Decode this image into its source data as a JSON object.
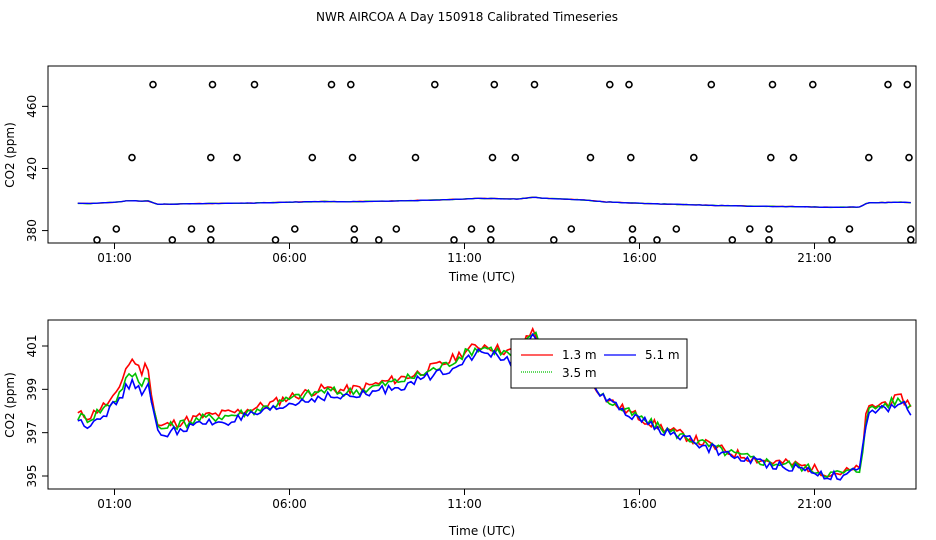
{
  "title": "NWR AIRCOA A  Day 150918  Calibrated Timeseries",
  "chart_data": [
    {
      "type": "scatter",
      "xlabel": "Time (UTC)",
      "ylabel": "CO2 (ppm)",
      "xlim": [
        -0.9,
        23.9
      ],
      "ylim": [
        372,
        486
      ],
      "xticks": [
        1,
        6,
        11,
        16,
        21
      ],
      "xtick_labels": [
        "01:00",
        "06:00",
        "11:00",
        "16:00",
        "21:00"
      ],
      "yticks": [
        380,
        420,
        460
      ],
      "ytick_labels": [
        "380",
        "420",
        "460"
      ],
      "grid": false,
      "points": [
        {
          "x": 0.5,
          "y": 374
        },
        {
          "x": 1.05,
          "y": 381
        },
        {
          "x": 1.5,
          "y": 427
        },
        {
          "x": 2.1,
          "y": 474
        },
        {
          "x": 2.65,
          "y": 374
        },
        {
          "x": 3.2,
          "y": 381
        },
        {
          "x": 3.75,
          "y": 381
        },
        {
          "x": 3.75,
          "y": 427
        },
        {
          "x": 3.8,
          "y": 474
        },
        {
          "x": 3.75,
          "y": 374
        },
        {
          "x": 4.5,
          "y": 427
        },
        {
          "x": 5.0,
          "y": 474
        },
        {
          "x": 5.6,
          "y": 374
        },
        {
          "x": 6.15,
          "y": 381
        },
        {
          "x": 6.65,
          "y": 427
        },
        {
          "x": 7.2,
          "y": 474
        },
        {
          "x": 7.75,
          "y": 474
        },
        {
          "x": 7.8,
          "y": 427
        },
        {
          "x": 7.85,
          "y": 381
        },
        {
          "x": 7.85,
          "y": 374
        },
        {
          "x": 8.55,
          "y": 374
        },
        {
          "x": 9.05,
          "y": 381
        },
        {
          "x": 9.6,
          "y": 427
        },
        {
          "x": 10.15,
          "y": 474
        },
        {
          "x": 10.7,
          "y": 374
        },
        {
          "x": 11.2,
          "y": 381
        },
        {
          "x": 11.75,
          "y": 381
        },
        {
          "x": 11.8,
          "y": 427
        },
        {
          "x": 11.85,
          "y": 474
        },
        {
          "x": 11.75,
          "y": 374
        },
        {
          "x": 12.45,
          "y": 427
        },
        {
          "x": 13.0,
          "y": 474
        },
        {
          "x": 13.55,
          "y": 374
        },
        {
          "x": 14.05,
          "y": 381
        },
        {
          "x": 14.6,
          "y": 427
        },
        {
          "x": 15.15,
          "y": 474
        },
        {
          "x": 15.7,
          "y": 474
        },
        {
          "x": 15.75,
          "y": 427
        },
        {
          "x": 15.8,
          "y": 381
        },
        {
          "x": 15.8,
          "y": 374
        },
        {
          "x": 16.5,
          "y": 374
        },
        {
          "x": 17.05,
          "y": 381
        },
        {
          "x": 17.55,
          "y": 427
        },
        {
          "x": 18.05,
          "y": 474
        },
        {
          "x": 18.65,
          "y": 374
        },
        {
          "x": 19.15,
          "y": 381
        },
        {
          "x": 19.7,
          "y": 381
        },
        {
          "x": 19.75,
          "y": 427
        },
        {
          "x": 19.8,
          "y": 474
        },
        {
          "x": 19.7,
          "y": 374
        },
        {
          "x": 20.4,
          "y": 427
        },
        {
          "x": 20.95,
          "y": 474
        },
        {
          "x": 21.5,
          "y": 374
        },
        {
          "x": 22.0,
          "y": 381
        },
        {
          "x": 22.55,
          "y": 427
        },
        {
          "x": 23.1,
          "y": 474
        },
        {
          "x": 23.65,
          "y": 474
        },
        {
          "x": 23.7,
          "y": 427
        },
        {
          "x": 23.75,
          "y": 381
        },
        {
          "x": 23.75,
          "y": 374
        }
      ],
      "series": [
        {
          "name": "red",
          "color": "#ff0000"
        },
        {
          "name": "green",
          "color": "#00c000"
        },
        {
          "name": "blue",
          "color": "#0000ff"
        }
      ]
    },
    {
      "type": "line",
      "xlabel": "Time (UTC)",
      "ylabel": "CO2 (ppm)",
      "xlim": [
        -0.9,
        23.9
      ],
      "ylim": [
        394.4,
        402.2
      ],
      "xticks": [
        1,
        6,
        11,
        16,
        21
      ],
      "xtick_labels": [
        "01:00",
        "06:00",
        "11:00",
        "16:00",
        "21:00"
      ],
      "yticks": [
        395,
        397,
        399,
        401
      ],
      "ytick_labels": [
        "395",
        "397",
        "399",
        "401"
      ],
      "grid": false,
      "legend": {
        "placement": "top-center",
        "visible_labels": [
          "1.3 m",
          "5.1 m",
          "3.5 m"
        ]
      },
      "series": [
        {
          "name": "1.3 m",
          "color": "#ff0000",
          "offset": 0.35,
          "spike_scale": 1.8
        },
        {
          "name": "3.5 m",
          "color": "#00c000",
          "offset": 0.25,
          "spike_scale": 1.2
        },
        {
          "name": "5.1 m",
          "color": "#0000ff",
          "offset": 0.0,
          "spike_scale": 1.0
        }
      ],
      "base_series": {
        "x": [
          -0.05,
          0.3,
          0.5,
          0.8,
          1.1,
          1.3,
          1.55,
          1.75,
          1.95,
          2.15,
          2.25,
          2.5,
          3.0,
          3.5,
          4.0,
          4.5,
          5.0,
          5.5,
          6.0,
          6.5,
          7.0,
          7.5,
          8.0,
          8.5,
          9.0,
          9.5,
          10.0,
          10.5,
          11.0,
          11.3,
          11.6,
          12.0,
          12.5,
          13.0,
          13.2,
          13.5,
          14.0,
          14.5,
          15.0,
          15.5,
          16.0,
          16.5,
          17.0,
          17.5,
          18.0,
          18.5,
          19.0,
          19.5,
          20.0,
          20.5,
          21.0,
          21.5,
          22.0,
          22.3,
          22.5,
          22.8,
          23.2,
          23.5,
          23.75
        ],
        "y": [
          397.5,
          397.4,
          397.7,
          398.0,
          398.4,
          399.0,
          399.3,
          398.9,
          399.2,
          397.6,
          396.9,
          397.0,
          397.2,
          397.4,
          397.5,
          397.6,
          397.8,
          398.0,
          398.3,
          398.5,
          398.7,
          398.6,
          398.7,
          398.9,
          399.1,
          399.3,
          399.6,
          399.9,
          400.4,
          400.6,
          400.7,
          400.5,
          400.3,
          401.5,
          400.9,
          400.6,
          400.2,
          399.5,
          398.5,
          398.0,
          397.6,
          397.2,
          396.9,
          396.6,
          396.3,
          396.0,
          395.8,
          395.6,
          395.5,
          395.4,
          395.2,
          395.0,
          395.1,
          395.2,
          397.8,
          398.0,
          398.2,
          398.3,
          398.0
        ]
      }
    }
  ]
}
